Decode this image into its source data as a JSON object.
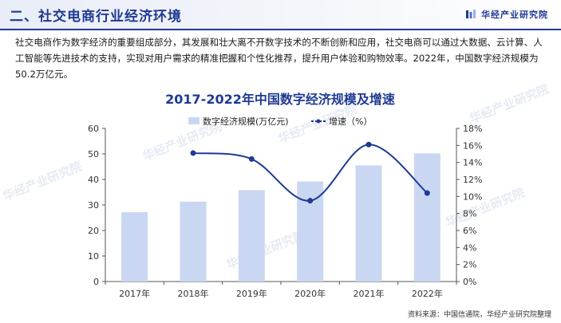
{
  "header": {
    "title": "二、社交电商行业经济环境",
    "brand": "华经产业研究院"
  },
  "paragraph": "社交电商作为数字经济的重要组成部分，其发展和壮大离不开数字技术的不断创新和应用，社交电商可以通过大数据、云计算、人工智能等先进技术的支持，实现对用户需求的精准把握和个性化推荐，提升用户体验和购物效率。2022年，中国数字经济规模为50.2万亿元。",
  "watermark": "华经产业研究院",
  "source": "资料来源：中国信通院，华经产业研究院整理",
  "colors": {
    "accent": "#1f3a93",
    "bar": "#c9d7f2",
    "line": "#1f3a93"
  },
  "chart_data": {
    "type": "bar",
    "title": "2017-2022年中国数字经济规模及增速",
    "categories": [
      "2017年",
      "2018年",
      "2019年",
      "2020年",
      "2021年",
      "2022年"
    ],
    "series": [
      {
        "name": "数字经济规模(万亿元)",
        "type": "bar",
        "axis": "left",
        "values": [
          27.2,
          31.3,
          35.8,
          39.2,
          45.5,
          50.2
        ]
      },
      {
        "name": "增速（%）",
        "type": "line",
        "axis": "right",
        "values": [
          null,
          15.1,
          14.4,
          9.5,
          16.1,
          10.4
        ]
      }
    ],
    "y_left": {
      "range": [
        0,
        60
      ],
      "ticks": [
        "0",
        "10",
        "20",
        "30",
        "40",
        "50",
        "60"
      ]
    },
    "y_right": {
      "range": [
        0,
        18
      ],
      "ticks": [
        "0%",
        "2%",
        "4%",
        "6%",
        "8%",
        "10%",
        "12%",
        "14%",
        "16%",
        "18%"
      ]
    },
    "legend": "top-center",
    "grid": false
  }
}
